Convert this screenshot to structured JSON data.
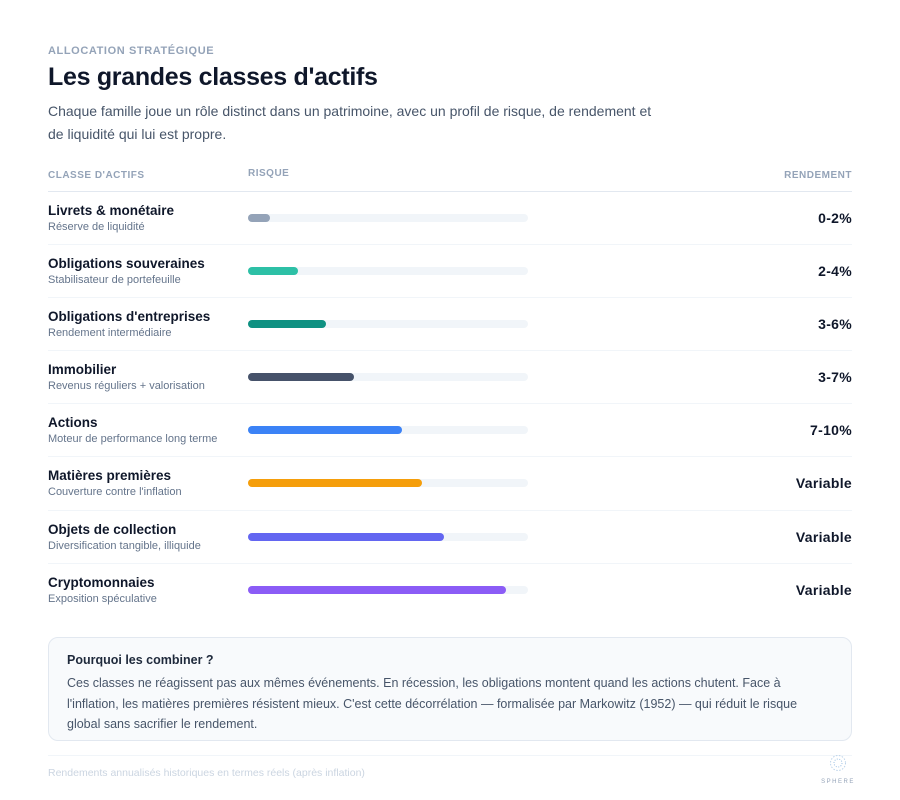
{
  "header": {
    "eyebrow": "ALLOCATION STRATÉGIQUE",
    "title": "Les grandes classes d'actifs",
    "intro": "Chaque famille joue un rôle distinct dans un patrimoine, avec un profil de risque, de rendement et de liquidité qui lui est propre."
  },
  "table": {
    "columns": {
      "asset": "CLASSE D'ACTIFS",
      "risk": "RISQUE",
      "return": "RENDEMENT"
    },
    "rows": [
      {
        "name": "Livrets & monétaire",
        "sub": "Réserve de liquidité",
        "risk": 8,
        "color": "#94a3b8",
        "ret": "0-2%"
      },
      {
        "name": "Obligations souveraines",
        "sub": "Stabilisateur de portefeuille",
        "risk": 18,
        "color": "#2dc0a6",
        "ret": "2-4%"
      },
      {
        "name": "Obligations d'entreprises",
        "sub": "Rendement intermédiaire",
        "risk": 28,
        "color": "#0f9182",
        "ret": "3-6%"
      },
      {
        "name": "Immobilier",
        "sub": "Revenus réguliers + valorisation",
        "risk": 38,
        "color": "#46526a",
        "ret": "3-7%"
      },
      {
        "name": "Actions",
        "sub": "Moteur de performance long terme",
        "risk": 55,
        "color": "#3b82f6",
        "ret": "7-10%"
      },
      {
        "name": "Matières premières",
        "sub": "Couverture contre l'inflation",
        "risk": 62,
        "color": "#f59e0b",
        "ret": "Variable"
      },
      {
        "name": "Objets de collection",
        "sub": "Diversification tangible, illiquide",
        "risk": 70,
        "color": "#6366f1",
        "ret": "Variable"
      },
      {
        "name": "Cryptomonnaies",
        "sub": "Exposition spéculative",
        "risk": 92,
        "color": "#8b5cf6",
        "ret": "Variable"
      }
    ]
  },
  "callout": {
    "title": "Pourquoi les combiner ?",
    "body": "Ces classes ne réagissent pas aux mêmes événements. En récession, les obligations montent quand les actions chutent. Face à l'inflation, les matières premières résistent mieux. C'est cette décorrélation — formalisée par Markowitz (1952) — qui réduit le risque global sans sacrifier le rendement."
  },
  "footer": {
    "note": "Rendements annualisés historiques en termes réels (après inflation)",
    "logo": "SPHERE"
  }
}
